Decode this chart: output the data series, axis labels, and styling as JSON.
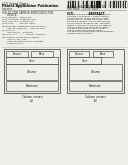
{
  "bg_color": "#f0eeea",
  "text_dark": "#222222",
  "text_mid": "#444444",
  "text_light": "#777777",
  "box_edge": "#555555",
  "line_color": "#888888",
  "barcode_color": "#111111",
  "fig_a_label": "(a)",
  "fig_b_label": "(b)",
  "fig_a_caption": "Column contact",
  "fig_b_caption": "Column contact"
}
